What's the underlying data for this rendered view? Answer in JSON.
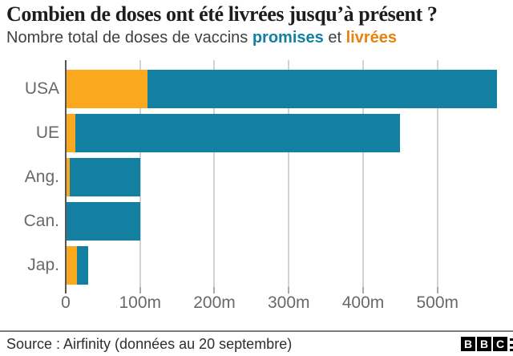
{
  "header": {
    "title": "Combien de doses ont été livrées jusqu’à présent ?",
    "subtitle_prefix": "Nombre total de doses de vaccins ",
    "subtitle_promised": "promises",
    "subtitle_and": " et ",
    "subtitle_delivered": "livrées"
  },
  "colors": {
    "promised_bar": "#1380A1",
    "delivered_bar": "#FAA91E",
    "promised_text": "#1380A1",
    "delivered_text": "#E8820D",
    "gridline": "#d2d2d2",
    "axis_line": "#555555"
  },
  "chart_data": {
    "type": "bar",
    "orientation": "horizontal",
    "title": "Combien de doses ont été livrées jusqu’à présent ?",
    "subtitle": "Nombre total de doses de vaccins promises et livrées",
    "categories": [
      "USA",
      "UE",
      "Ang.",
      "Can.",
      "Jap."
    ],
    "series": [
      {
        "name": "promises",
        "color": "#1380A1",
        "values": [
          580,
          450,
          100,
          100,
          30
        ]
      },
      {
        "name": "livrées",
        "color": "#FAA91E",
        "values": [
          110,
          13,
          5,
          0,
          15
        ]
      }
    ],
    "value_unit": "millions (m)",
    "xlim": [
      0,
      593
    ],
    "x_ticks": [
      {
        "value": 0,
        "label": "0"
      },
      {
        "value": 100,
        "label": "100m"
      },
      {
        "value": 200,
        "label": "200m"
      },
      {
        "value": 300,
        "label": "300m"
      },
      {
        "value": 400,
        "label": "400m"
      },
      {
        "value": 500,
        "label": "500m"
      }
    ],
    "grid": "vertical",
    "legend_position": "in-subtitle"
  },
  "footer": {
    "source": "Source : Airfinity (données au 20 septembre)",
    "logo_letters": [
      "B",
      "B",
      "C"
    ]
  }
}
